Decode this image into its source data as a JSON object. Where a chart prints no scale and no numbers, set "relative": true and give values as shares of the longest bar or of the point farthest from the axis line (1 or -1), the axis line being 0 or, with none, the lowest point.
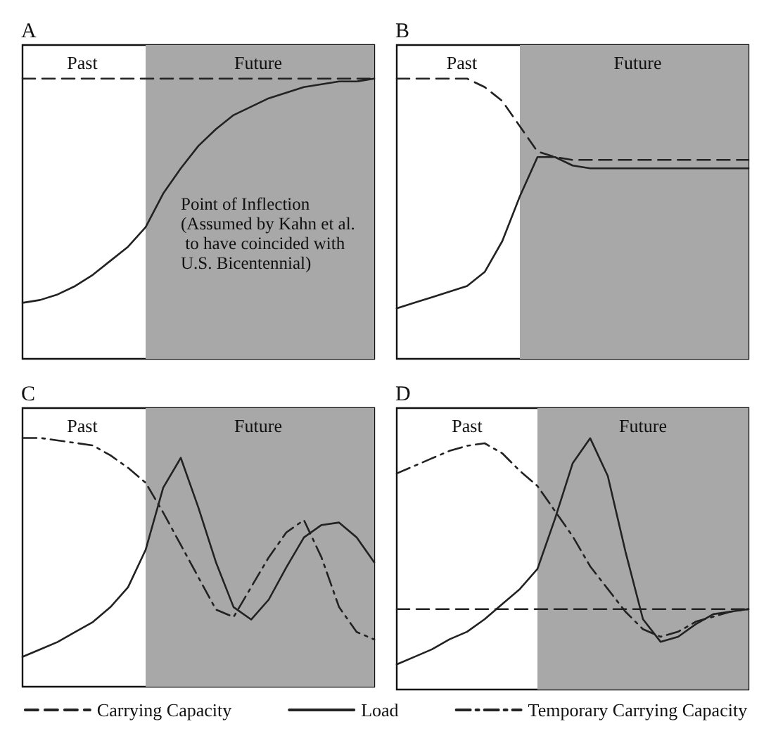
{
  "chart_data": [
    {
      "type": "line",
      "title": "A",
      "relative": true,
      "legend": false,
      "marker": "none",
      "categories": [
        null,
        null,
        null,
        null,
        null,
        null,
        null,
        null,
        null,
        null,
        null,
        null,
        null,
        null,
        null,
        null,
        null,
        null,
        null,
        null,
        null
      ],
      "annotations": [
        "Past",
        "Future",
        "Point of Inflection (Assumed by Kahn et al. to have coincided with U.S. Bicentennial)"
      ],
      "series": [
        {
          "color": "#222222",
          "line_style": "dashed",
          "values": [
            1,
            1,
            1,
            1,
            1,
            1,
            1,
            1,
            1,
            1,
            1,
            1,
            1,
            1,
            1,
            1,
            1,
            1,
            1,
            1,
            1
          ]
        },
        {
          "color": "#222222",
          "line_style": "solid",
          "values": [
            0.2,
            0.21,
            0.23,
            0.26,
            0.3,
            0.35,
            0.4,
            0.47,
            0.59,
            0.68,
            0.76,
            0.82,
            0.87,
            0.9,
            0.93,
            0.95,
            0.97,
            0.98,
            0.99,
            0.99,
            1
          ]
        }
      ]
    },
    {
      "type": "line",
      "title": "B",
      "relative": true,
      "legend": false,
      "marker": "none",
      "categories": [
        null,
        null,
        null,
        null,
        null,
        null,
        null,
        null,
        null,
        null,
        null,
        null,
        null,
        null,
        null,
        null,
        null,
        null,
        null,
        null,
        null
      ],
      "annotations": [
        "Past",
        "Future"
      ],
      "series": [
        {
          "color": "#222222",
          "line_style": "dashed",
          "values": [
            1,
            1,
            1,
            1,
            1,
            0.97,
            0.92,
            0.83,
            0.74,
            0.72,
            0.71,
            0.71,
            0.71,
            0.71,
            0.71,
            0.71,
            0.71,
            0.71,
            0.71,
            0.71,
            0.71
          ]
        },
        {
          "color": "#222222",
          "line_style": "solid",
          "values": [
            0.18,
            0.2,
            0.22,
            0.24,
            0.26,
            0.31,
            0.42,
            0.58,
            0.72,
            0.72,
            0.69,
            0.68,
            0.68,
            0.68,
            0.68,
            0.68,
            0.68,
            0.68,
            0.68,
            0.68,
            0.68
          ]
        }
      ]
    },
    {
      "type": "line",
      "title": "C",
      "relative": true,
      "legend": false,
      "marker": "none",
      "categories": [
        null,
        null,
        null,
        null,
        null,
        null,
        null,
        null,
        null,
        null,
        null,
        null,
        null,
        null,
        null,
        null,
        null,
        null,
        null,
        null,
        null
      ],
      "annotations": [
        "Past",
        "Future"
      ],
      "series": [
        {
          "color": "#222222",
          "line_style": "solid",
          "values": [
            0.12,
            0.15,
            0.18,
            0.22,
            0.26,
            0.32,
            0.4,
            0.55,
            0.8,
            0.92,
            0.72,
            0.5,
            0.32,
            0.27,
            0.35,
            0.48,
            0.6,
            0.65,
            0.66,
            0.6,
            0.5
          ]
        },
        {
          "color": "#222222",
          "line_style": "dashdot",
          "values": [
            1,
            1,
            0.99,
            0.98,
            0.97,
            0.93,
            0.88,
            0.82,
            0.7,
            0.57,
            0.44,
            0.31,
            0.28,
            0.4,
            0.52,
            0.62,
            0.67,
            0.52,
            0.32,
            0.22,
            0.19
          ]
        }
      ]
    },
    {
      "type": "line",
      "title": "D",
      "relative": true,
      "legend": "bottom",
      "marker": "none",
      "categories": [
        null,
        null,
        null,
        null,
        null,
        null,
        null,
        null,
        null,
        null,
        null,
        null,
        null,
        null,
        null,
        null,
        null,
        null,
        null,
        null,
        null
      ],
      "annotations": [
        "Past",
        "Future"
      ],
      "series": [
        {
          "name": "Carrying Capacity",
          "color": "#222222",
          "line_style": "dashed",
          "values": [
            0.32,
            0.32,
            0.32,
            0.32,
            0.32,
            0.32,
            0.32,
            0.32,
            0.32,
            0.32,
            0.32,
            0.32,
            0.32,
            0.32,
            0.32,
            0.32,
            0.32,
            0.32,
            0.32,
            0.32,
            0.32
          ]
        },
        {
          "name": "Load",
          "color": "#222222",
          "line_style": "solid",
          "values": [
            0.1,
            0.13,
            0.16,
            0.2,
            0.23,
            0.28,
            0.34,
            0.4,
            0.48,
            0.68,
            0.9,
            1,
            0.85,
            0.55,
            0.28,
            0.19,
            0.21,
            0.26,
            0.3,
            0.31,
            0.32
          ]
        },
        {
          "name": "Temporary Carrying Capacity",
          "color": "#222222",
          "line_style": "dashdot",
          "values": [
            0.86,
            0.89,
            0.92,
            0.95,
            0.97,
            0.98,
            0.94,
            0.87,
            0.81,
            0.71,
            0.61,
            0.49,
            0.4,
            0.31,
            0.24,
            0.21,
            0.23,
            0.27,
            0.29,
            0.31,
            0.32
          ]
        }
      ]
    }
  ]
}
